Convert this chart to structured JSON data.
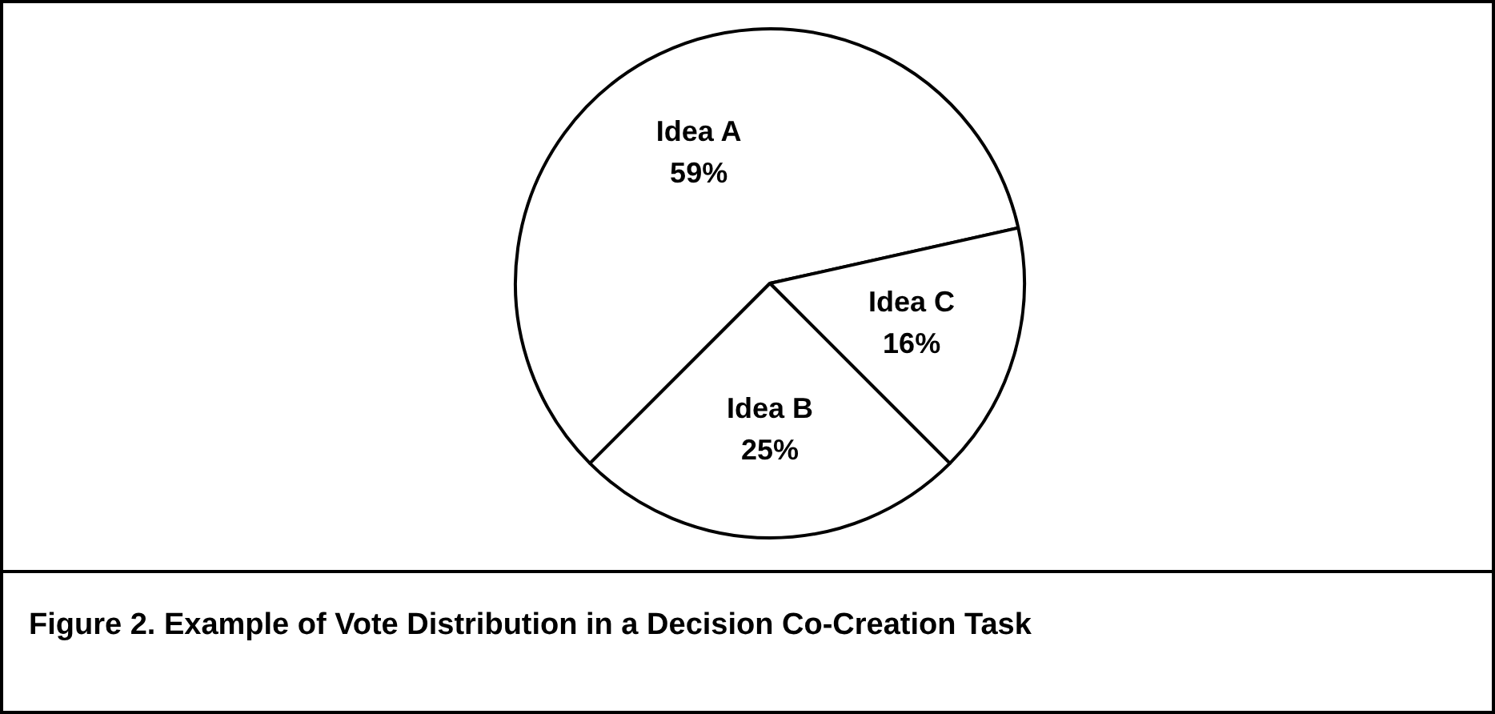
{
  "chart_data": {
    "type": "pie",
    "title": "Figure 2. Example of Vote Distribution in a Decision Co-Creation Task",
    "categories": [
      "Idea A",
      "Idea C",
      "Idea B"
    ],
    "values": [
      59,
      16,
      25
    ],
    "value_labels": [
      "59%",
      "16%",
      "25%"
    ],
    "colors": [
      "#ffffff",
      "#ffffff",
      "#ffffff"
    ]
  }
}
